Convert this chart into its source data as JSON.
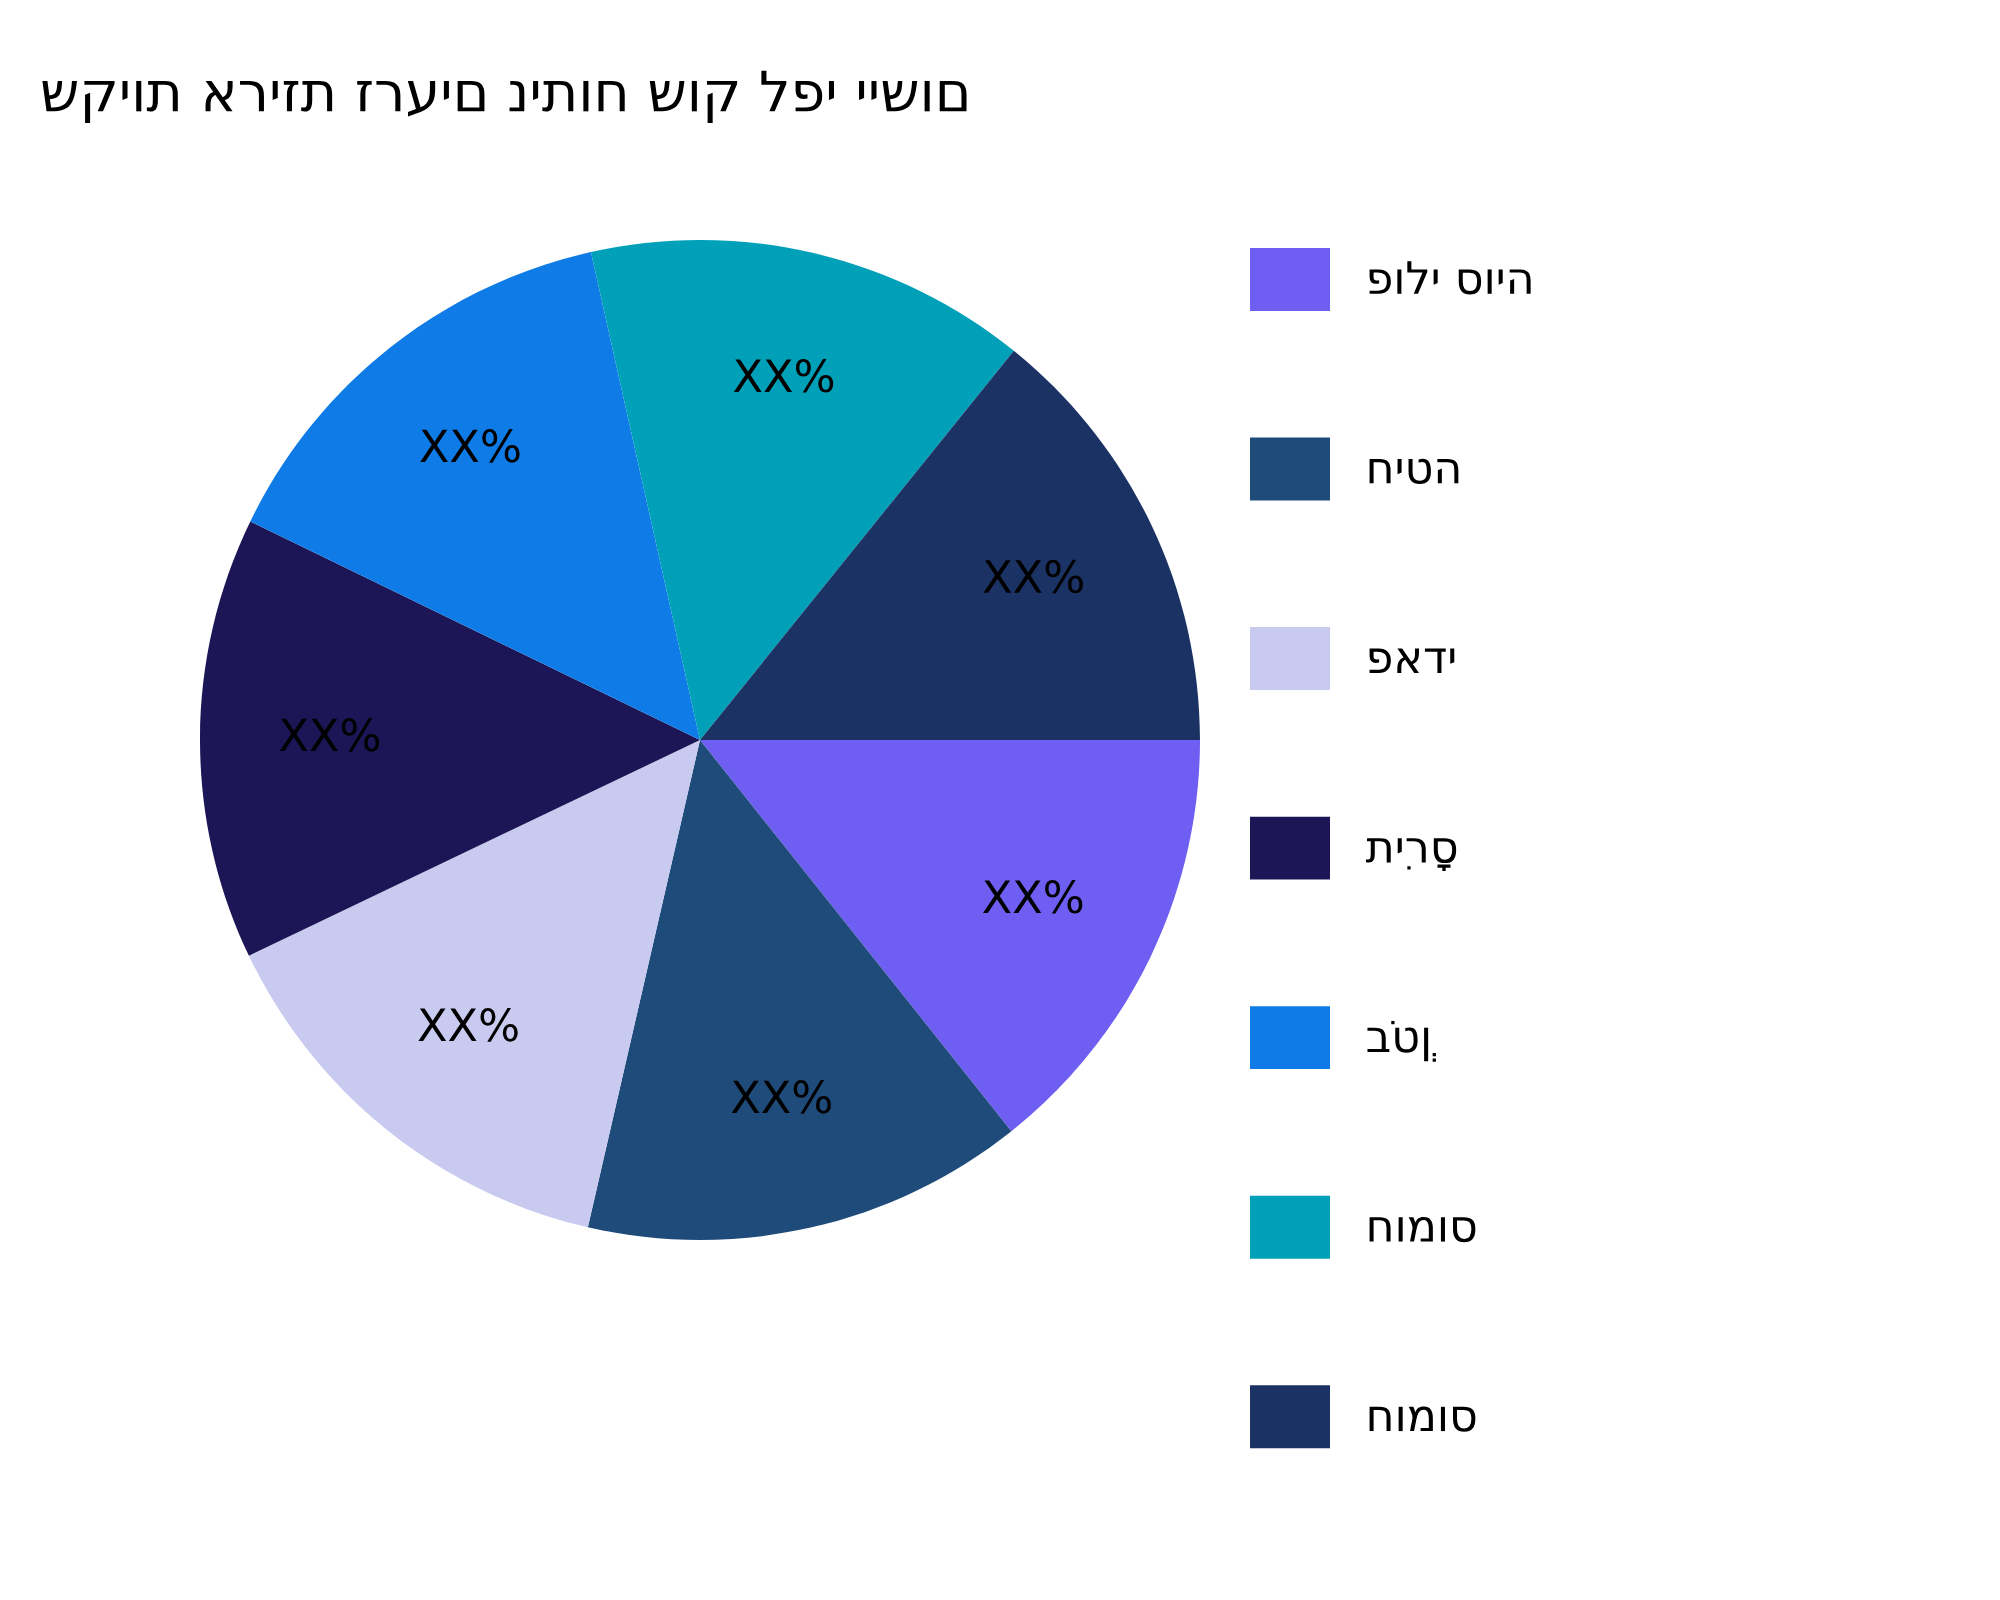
{
  "chart_data": {
    "type": "pie",
    "title": "שקיות אריזת זרעים ניתוח שוק לפי יישום",
    "categories": [
      "פולי סויה",
      "חיטה",
      "פאדי",
      "תִירָס",
      "בֹטְן",
      "חומוס",
      "חומוס"
    ],
    "values": [
      14.3,
      14.3,
      14.3,
      14.3,
      14.3,
      14.3,
      14.2
    ],
    "value_labels": [
      "XX%",
      "XX%",
      "XX%",
      "XX%",
      "XX%",
      "XX%",
      "XX%"
    ],
    "colors": [
      "#6e5ff2",
      "#1f4b7a",
      "#c9caf0",
      "#1c1656",
      "#0e7be6",
      "#00a0b9",
      "#1b3264"
    ],
    "legend": "right"
  }
}
